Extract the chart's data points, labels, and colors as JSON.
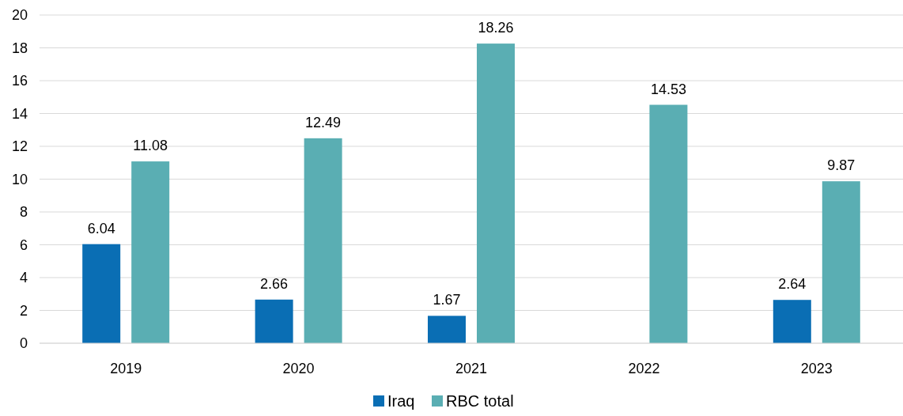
{
  "chart_data": {
    "type": "bar",
    "categories": [
      "2019",
      "2020",
      "2021",
      "2022",
      "2023"
    ],
    "series": [
      {
        "name": "Iraq",
        "color": "#0a6eb4",
        "values": [
          6.04,
          2.66,
          1.67,
          null,
          2.64
        ]
      },
      {
        "name": "RBC total",
        "color": "#5aaeb3",
        "values": [
          11.08,
          12.49,
          18.26,
          14.53,
          9.87
        ]
      }
    ],
    "ylim": [
      0,
      20
    ],
    "yticks": [
      0,
      2,
      4,
      6,
      8,
      10,
      12,
      14,
      16,
      18,
      20
    ],
    "grid": "y",
    "legend": "bottom",
    "data_labels": true
  }
}
